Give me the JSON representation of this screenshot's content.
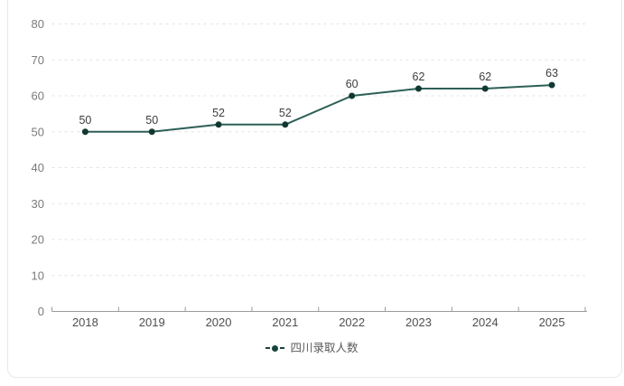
{
  "chart_data": {
    "type": "line",
    "title": "",
    "xlabel": "",
    "ylabel": "",
    "categories": [
      "2018",
      "2019",
      "2020",
      "2021",
      "2022",
      "2023",
      "2024",
      "2025"
    ],
    "series": [
      {
        "name": "四川录取人数",
        "values": [
          50,
          50,
          52,
          52,
          60,
          62,
          62,
          63
        ],
        "point_labels": [
          "50",
          "50",
          "52",
          "52",
          "60",
          "62",
          "62",
          "63"
        ]
      }
    ],
    "ylim": [
      0,
      80
    ],
    "yticks": [
      0,
      10,
      20,
      30,
      40,
      50,
      60,
      70,
      80
    ],
    "grid": "horizontal-dashed",
    "legend_position": "bottom-center"
  },
  "colors": {
    "line": "#2e5f57",
    "point": "#103932",
    "value_label": "#3d3d3d",
    "x_tick_label": "#4f4f4f",
    "y_tick_label": "#7b7b7b",
    "legend_text": "#595959",
    "axis_line": "#9a9a9a",
    "gridline": "#e3e3e3",
    "card_border": "#e7eae8",
    "background": "#ffffff"
  }
}
